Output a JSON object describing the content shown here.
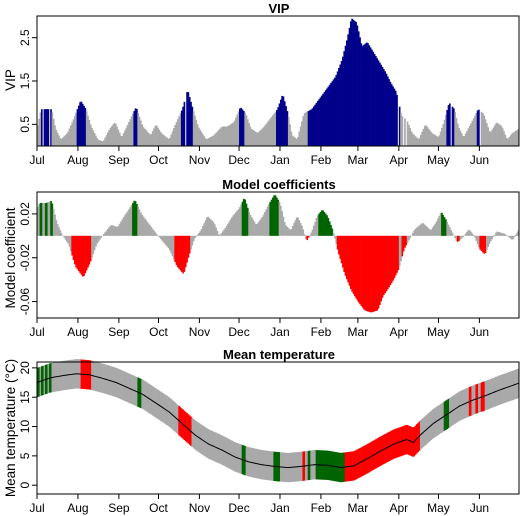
{
  "colors": {
    "neutral": "#a9a9a9",
    "vip_important": "#00008b",
    "positive": "#006400",
    "negative": "#ff0000",
    "line": "#000000",
    "frame": "#000000"
  },
  "chart_data": [
    {
      "type": "area",
      "title": "VIP",
      "xlabel": "",
      "ylabel": "VIP",
      "xlim": [
        0,
        365
      ],
      "ylim": [
        0,
        3.0
      ],
      "yticks": [
        "0.5",
        "1.5",
        "2.5"
      ],
      "ytick_values": [
        0.5,
        1.5,
        2.5
      ],
      "xticks": [
        "Jul",
        "Aug",
        "Sep",
        "Oct",
        "Nov",
        "Dec",
        "Jan",
        "Feb",
        "Mar",
        "Apr",
        "May",
        "Jun"
      ],
      "xtick_values": [
        0,
        31,
        62,
        92,
        123,
        153,
        184,
        215,
        243,
        274,
        304,
        335
      ],
      "threshold": 0.8,
      "knots": [
        [
          0,
          0.4
        ],
        [
          3,
          0.85
        ],
        [
          7,
          0.85
        ],
        [
          11,
          0.85
        ],
        [
          14,
          0.4
        ],
        [
          18,
          0.15
        ],
        [
          23,
          0.3
        ],
        [
          28,
          0.65
        ],
        [
          33,
          1.05
        ],
        [
          37,
          0.85
        ],
        [
          41,
          0.45
        ],
        [
          46,
          0.15
        ],
        [
          50,
          0.1
        ],
        [
          55,
          0.4
        ],
        [
          59,
          0.55
        ],
        [
          64,
          0.2
        ],
        [
          71,
          0.65
        ],
        [
          75,
          0.9
        ],
        [
          80,
          0.45
        ],
        [
          86,
          0.25
        ],
        [
          90,
          0.5
        ],
        [
          94,
          0.3
        ],
        [
          100,
          0.15
        ],
        [
          104,
          0.45
        ],
        [
          110,
          0.85
        ],
        [
          114,
          1.3
        ],
        [
          118,
          0.85
        ],
        [
          122,
          0.45
        ],
        [
          128,
          0.15
        ],
        [
          134,
          0.25
        ],
        [
          140,
          0.45
        ],
        [
          144,
          0.45
        ],
        [
          149,
          0.55
        ],
        [
          154,
          0.9
        ],
        [
          158,
          0.75
        ],
        [
          162,
          0.4
        ],
        [
          167,
          0.3
        ],
        [
          172,
          0.45
        ],
        [
          177,
          0.65
        ],
        [
          182,
          0.85
        ],
        [
          186,
          1.2
        ],
        [
          190,
          0.75
        ],
        [
          193,
          0.25
        ],
        [
          197,
          0.15
        ],
        [
          202,
          0.75
        ],
        [
          208,
          0.85
        ],
        [
          214,
          1.1
        ],
        [
          220,
          1.35
        ],
        [
          226,
          1.6
        ],
        [
          231,
          2.0
        ],
        [
          235,
          2.5
        ],
        [
          238,
          2.95
        ],
        [
          242,
          2.85
        ],
        [
          246,
          2.3
        ],
        [
          250,
          2.4
        ],
        [
          254,
          2.2
        ],
        [
          259,
          1.95
        ],
        [
          264,
          1.7
        ],
        [
          268,
          1.45
        ],
        [
          272,
          1.25
        ],
        [
          276,
          0.7
        ],
        [
          280,
          0.6
        ],
        [
          284,
          0.3
        ],
        [
          289,
          0.15
        ],
        [
          294,
          0.5
        ],
        [
          299,
          0.3
        ],
        [
          304,
          0.2
        ],
        [
          308,
          0.55
        ],
        [
          312,
          1.0
        ],
        [
          316,
          0.85
        ],
        [
          319,
          0.45
        ],
        [
          323,
          0.2
        ],
        [
          329,
          0.55
        ],
        [
          334,
          0.85
        ],
        [
          338,
          0.75
        ],
        [
          343,
          0.3
        ],
        [
          348,
          0.55
        ],
        [
          352,
          0.45
        ],
        [
          356,
          0.15
        ],
        [
          360,
          0.3
        ],
        [
          365,
          0.4
        ]
      ],
      "gaps": [
        [
          4.5,
          5.5
        ],
        [
          9,
          10
        ],
        [
          112,
          112.8
        ],
        [
          273.5,
          274.5
        ],
        [
          277,
          277.8
        ],
        [
          279.5,
          280.5
        ],
        [
          313.5,
          314.2
        ],
        [
          335,
          336
        ]
      ]
    },
    {
      "type": "area",
      "title": "Model coefficients",
      "xlabel": "",
      "ylabel": "Model coefficient",
      "xlim": [
        0,
        365
      ],
      "ylim": [
        -0.075,
        0.04
      ],
      "yticks": [
        "-0.06",
        "-0.02",
        "0.02"
      ],
      "ytick_values": [
        -0.06,
        -0.02,
        0.02
      ],
      "xticks": [
        "Jul",
        "Aug",
        "Sep",
        "Oct",
        "Nov",
        "Dec",
        "Jan",
        "Feb",
        "Mar",
        "Apr",
        "May",
        "Jun"
      ],
      "xtick_values": [
        0,
        31,
        62,
        92,
        123,
        153,
        184,
        215,
        243,
        274,
        304,
        335
      ],
      "knots": [
        [
          0,
          0.025
        ],
        [
          2,
          0.03
        ],
        [
          7,
          0.03
        ],
        [
          11,
          0.032
        ],
        [
          15,
          0.012
        ],
        [
          19,
          0.001
        ],
        [
          24,
          -0.008
        ],
        [
          29,
          -0.028
        ],
        [
          35,
          -0.038
        ],
        [
          40,
          -0.025
        ],
        [
          45,
          -0.008
        ],
        [
          50,
          0.001
        ],
        [
          56,
          0.01
        ],
        [
          61,
          0.008
        ],
        [
          66,
          0.018
        ],
        [
          70,
          0.025
        ],
        [
          74,
          0.033
        ],
        [
          79,
          0.02
        ],
        [
          84,
          0.012
        ],
        [
          89,
          0.004
        ],
        [
          95,
          -0.005
        ],
        [
          100,
          -0.012
        ],
        [
          106,
          -0.028
        ],
        [
          111,
          -0.035
        ],
        [
          115,
          -0.018
        ],
        [
          119,
          -0.003
        ],
        [
          124,
          0.005
        ],
        [
          129,
          0.018
        ],
        [
          134,
          0.012
        ],
        [
          138,
          0.0
        ],
        [
          143,
          0.008
        ],
        [
          148,
          0.018
        ],
        [
          153,
          0.025
        ],
        [
          157,
          0.035
        ],
        [
          161,
          0.02
        ],
        [
          166,
          0.01
        ],
        [
          171,
          0.018
        ],
        [
          175,
          0.028
        ],
        [
          180,
          0.038
        ],
        [
          184,
          0.03
        ],
        [
          188,
          0.01
        ],
        [
          192,
          0.005
        ],
        [
          197,
          0.018
        ],
        [
          201,
          0.008
        ],
        [
          204,
          -0.005
        ],
        [
          208,
          0.004
        ],
        [
          212,
          0.018
        ],
        [
          216,
          0.024
        ],
        [
          220,
          0.018
        ],
        [
          224,
          0.005
        ],
        [
          228,
          -0.015
        ],
        [
          233,
          -0.035
        ],
        [
          238,
          -0.05
        ],
        [
          243,
          -0.06
        ],
        [
          248,
          -0.068
        ],
        [
          253,
          -0.07
        ],
        [
          258,
          -0.068
        ],
        [
          262,
          -0.055
        ],
        [
          266,
          -0.048
        ],
        [
          270,
          -0.04
        ],
        [
          274,
          -0.03
        ],
        [
          278,
          -0.012
        ],
        [
          282,
          -0.003
        ],
        [
          286,
          0.006
        ],
        [
          292,
          0.012
        ],
        [
          298,
          0.005
        ],
        [
          302,
          0.012
        ],
        [
          306,
          0.022
        ],
        [
          310,
          0.014
        ],
        [
          314,
          0.004
        ],
        [
          318,
          -0.006
        ],
        [
          322,
          -0.002
        ],
        [
          327,
          0.006
        ],
        [
          331,
          0.0
        ],
        [
          335,
          -0.012
        ],
        [
          339,
          -0.017
        ],
        [
          343,
          -0.006
        ],
        [
          348,
          0.004
        ],
        [
          354,
          0.002
        ],
        [
          360,
          -0.004
        ],
        [
          365,
          0.006
        ]
      ],
      "highlight_ranges": [
        [
          2,
          4
        ],
        [
          6,
          8
        ],
        [
          10,
          12
        ],
        [
          26,
          41
        ],
        [
          72,
          76
        ],
        [
          104,
          116
        ],
        [
          155,
          160
        ],
        [
          176,
          183
        ],
        [
          204,
          206
        ],
        [
          213,
          224
        ],
        [
          227,
          274
        ],
        [
          276,
          280
        ],
        [
          306,
          310
        ],
        [
          318,
          320
        ],
        [
          335,
          340
        ]
      ]
    },
    {
      "type": "line",
      "title": "Mean temperature",
      "xlabel": "",
      "ylabel": "Mean temperature (°C)",
      "xlim": [
        0,
        365
      ],
      "ylim": [
        -1.5,
        21
      ],
      "yticks": [
        "0",
        "5",
        "10",
        "15",
        "20"
      ],
      "ytick_values": [
        0,
        5,
        10,
        15,
        20
      ],
      "xticks": [
        "Jul",
        "Aug",
        "Sep",
        "Oct",
        "Nov",
        "Dec",
        "Jan",
        "Feb",
        "Mar",
        "Apr",
        "May",
        "Jun"
      ],
      "xtick_values": [
        0,
        31,
        62,
        92,
        123,
        153,
        184,
        215,
        243,
        274,
        304,
        335
      ],
      "mean": [
        [
          0,
          17.5
        ],
        [
          10,
          18.3
        ],
        [
          20,
          18.7
        ],
        [
          30,
          19.0
        ],
        [
          40,
          18.8
        ],
        [
          50,
          18.2
        ],
        [
          60,
          17.5
        ],
        [
          70,
          16.5
        ],
        [
          80,
          15.5
        ],
        [
          90,
          14.0
        ],
        [
          100,
          12.5
        ],
        [
          110,
          10.5
        ],
        [
          120,
          8.5
        ],
        [
          130,
          7.0
        ],
        [
          140,
          6.0
        ],
        [
          150,
          4.8
        ],
        [
          160,
          4.0
        ],
        [
          170,
          3.5
        ],
        [
          180,
          3.2
        ],
        [
          190,
          3.0
        ],
        [
          200,
          3.2
        ],
        [
          210,
          3.5
        ],
        [
          220,
          3.4
        ],
        [
          230,
          3.0
        ],
        [
          240,
          3.3
        ],
        [
          250,
          4.5
        ],
        [
          260,
          5.8
        ],
        [
          270,
          7.0
        ],
        [
          280,
          7.8
        ],
        [
          285,
          7.3
        ],
        [
          290,
          8.5
        ],
        [
          300,
          10.5
        ],
        [
          310,
          12.0
        ],
        [
          320,
          13.5
        ],
        [
          330,
          14.5
        ],
        [
          340,
          15.3
        ],
        [
          350,
          16.2
        ],
        [
          360,
          17.0
        ],
        [
          365,
          17.4
        ]
      ],
      "band_halfwidth": 2.5,
      "bar_colors": {
        "green": [
          [
            0,
            2
          ],
          [
            3,
            5
          ],
          [
            6,
            8
          ],
          [
            9,
            11
          ],
          [
            76,
            79
          ],
          [
            155,
            158
          ],
          [
            179,
            184
          ],
          [
            205,
            207
          ],
          [
            211,
            233
          ],
          [
            308,
            312
          ]
        ],
        "red": [
          [
            33,
            41
          ],
          [
            107,
            117
          ],
          [
            201,
            203
          ],
          [
            233,
            290
          ],
          [
            327,
            329
          ],
          [
            332,
            334
          ],
          [
            336,
            339
          ]
        ]
      }
    }
  ]
}
